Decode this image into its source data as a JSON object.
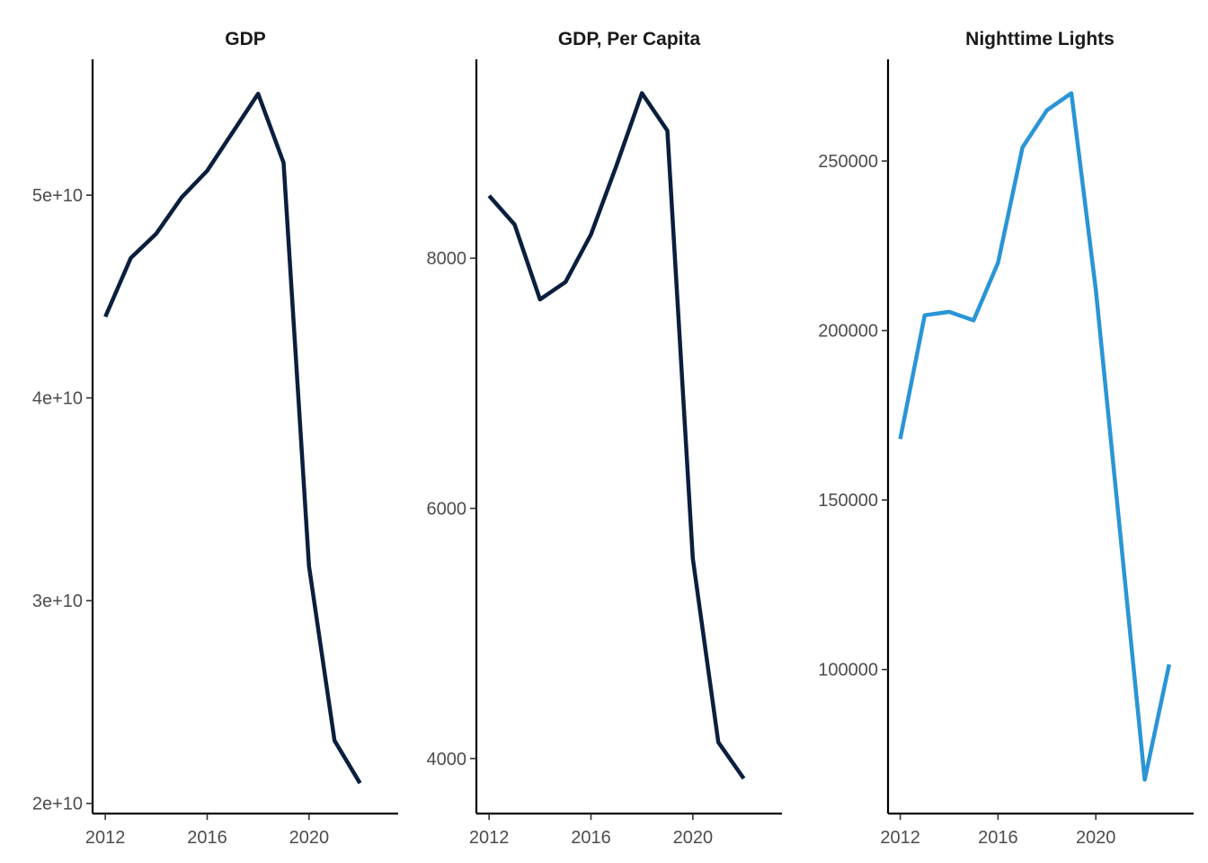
{
  "chart_data": [
    {
      "type": "line",
      "title": "GDP",
      "xlabel": "",
      "ylabel": "",
      "x": [
        2012,
        2013,
        2014,
        2015,
        2016,
        2017,
        2018,
        2019,
        2020,
        2021,
        2022
      ],
      "series": [
        {
          "values": [
            44000000000,
            46900000000,
            48100000000,
            49900000000,
            51200000000,
            53100000000,
            55000000000,
            51600000000,
            31700000000,
            23100000000,
            21000000000
          ]
        }
      ],
      "xlim": [
        2011.5,
        2023.5
      ],
      "ylim": [
        19500000000,
        56700000000
      ],
      "xticks": [
        2012,
        2016,
        2020
      ],
      "xtick_labels": [
        "2012",
        "2016",
        "2020"
      ],
      "yticks": [
        20000000000,
        30000000000,
        40000000000,
        50000000000
      ],
      "ytick_labels": [
        "2e+10",
        "3e+10",
        "4e+10",
        "5e+10"
      ],
      "color": "#0a1f3d",
      "grid": false
    },
    {
      "type": "line",
      "title": "GDP, Per Capita",
      "xlabel": "",
      "ylabel": "",
      "x": [
        2012,
        2013,
        2014,
        2015,
        2016,
        2017,
        2018,
        2019,
        2020,
        2021,
        2022
      ],
      "series": [
        {
          "values": [
            8500,
            8270,
            7670,
            7810,
            8190,
            8740,
            9320,
            9020,
            5600,
            4130,
            3840
          ]
        }
      ],
      "xlim": [
        2011.5,
        2023.5
      ],
      "ylim": [
        3560,
        9590
      ],
      "xticks": [
        2012,
        2016,
        2020
      ],
      "xtick_labels": [
        "2012",
        "2016",
        "2020"
      ],
      "yticks": [
        4000,
        6000,
        8000
      ],
      "ytick_labels": [
        "4000",
        "6000",
        "8000"
      ],
      "color": "#0a1f3d",
      "grid": false
    },
    {
      "type": "line",
      "title": "Nighttime Lights",
      "xlabel": "",
      "ylabel": "",
      "x": [
        2012,
        2013,
        2014,
        2015,
        2016,
        2017,
        2018,
        2019,
        2020,
        2021,
        2022,
        2023
      ],
      "series": [
        {
          "values": [
            168000,
            204500,
            205500,
            203000,
            220000,
            254000,
            265000,
            270000,
            212000,
            140000,
            67500,
            101500
          ]
        }
      ],
      "xlim": [
        2011.5,
        2024.0
      ],
      "ylim": [
        57500,
        280000
      ],
      "xticks": [
        2012,
        2016,
        2020
      ],
      "xtick_labels": [
        "2012",
        "2016",
        "2020"
      ],
      "yticks": [
        100000,
        150000,
        200000,
        250000
      ],
      "ytick_labels": [
        "100000",
        "150000",
        "200000",
        "250000"
      ],
      "color": "#2a95d6",
      "grid": false
    }
  ]
}
